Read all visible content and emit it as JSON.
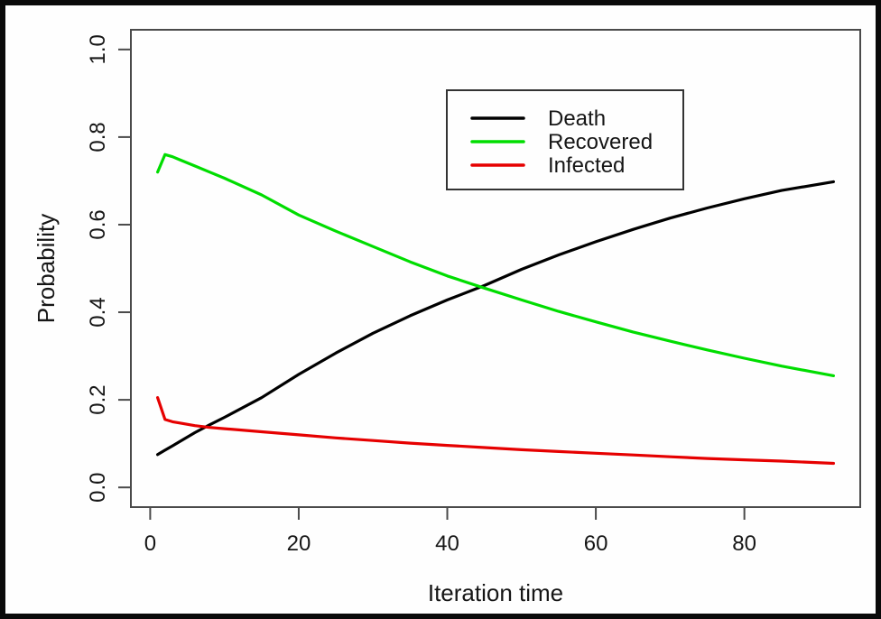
{
  "figure": {
    "background": "#fefefe",
    "frame_border_color": "#0a0a0a",
    "plot_box_color": "#4a4a4a"
  },
  "chart_data": {
    "type": "line",
    "title": "",
    "xlabel": "Iteration time",
    "ylabel": "Probability",
    "xlim": [
      -2.6,
      95.6
    ],
    "ylim": [
      -0.045,
      1.045
    ],
    "grid": false,
    "x_ticks": [
      0,
      20,
      40,
      60,
      80
    ],
    "x_tick_labels": [
      "0",
      "20",
      "40",
      "60",
      "80"
    ],
    "y_ticks": [
      0.0,
      0.2,
      0.4,
      0.6,
      0.8,
      1.0
    ],
    "y_tick_labels": [
      "0.0",
      "0.2",
      "0.4",
      "0.6",
      "0.8",
      "1.0"
    ],
    "legend": {
      "position": "inside-top-center",
      "entries": [
        "Death",
        "Recovered",
        "Infected"
      ]
    },
    "x": [
      1,
      2,
      3,
      4,
      6,
      8,
      10,
      15,
      20,
      25,
      30,
      35,
      40,
      45,
      50,
      55,
      60,
      65,
      70,
      75,
      80,
      85,
      92
    ],
    "series": [
      {
        "name": "Death",
        "color": "#000000",
        "values": [
          0.075,
          0.085,
          0.095,
          0.105,
          0.125,
          0.143,
          0.16,
          0.205,
          0.258,
          0.307,
          0.352,
          0.392,
          0.428,
          0.461,
          0.498,
          0.531,
          0.561,
          0.589,
          0.615,
          0.638,
          0.659,
          0.678,
          0.698
        ]
      },
      {
        "name": "Recovered",
        "color": "#00dd00",
        "values": [
          0.72,
          0.76,
          0.755,
          0.748,
          0.734,
          0.72,
          0.706,
          0.668,
          0.622,
          0.585,
          0.55,
          0.515,
          0.483,
          0.455,
          0.428,
          0.402,
          0.378,
          0.355,
          0.334,
          0.314,
          0.295,
          0.277,
          0.255
        ]
      },
      {
        "name": "Infected",
        "color": "#e60000",
        "values": [
          0.205,
          0.155,
          0.15,
          0.147,
          0.141,
          0.137,
          0.134,
          0.127,
          0.12,
          0.113,
          0.107,
          0.101,
          0.096,
          0.091,
          0.086,
          0.082,
          0.078,
          0.074,
          0.07,
          0.066,
          0.063,
          0.06,
          0.055
        ]
      }
    ]
  }
}
